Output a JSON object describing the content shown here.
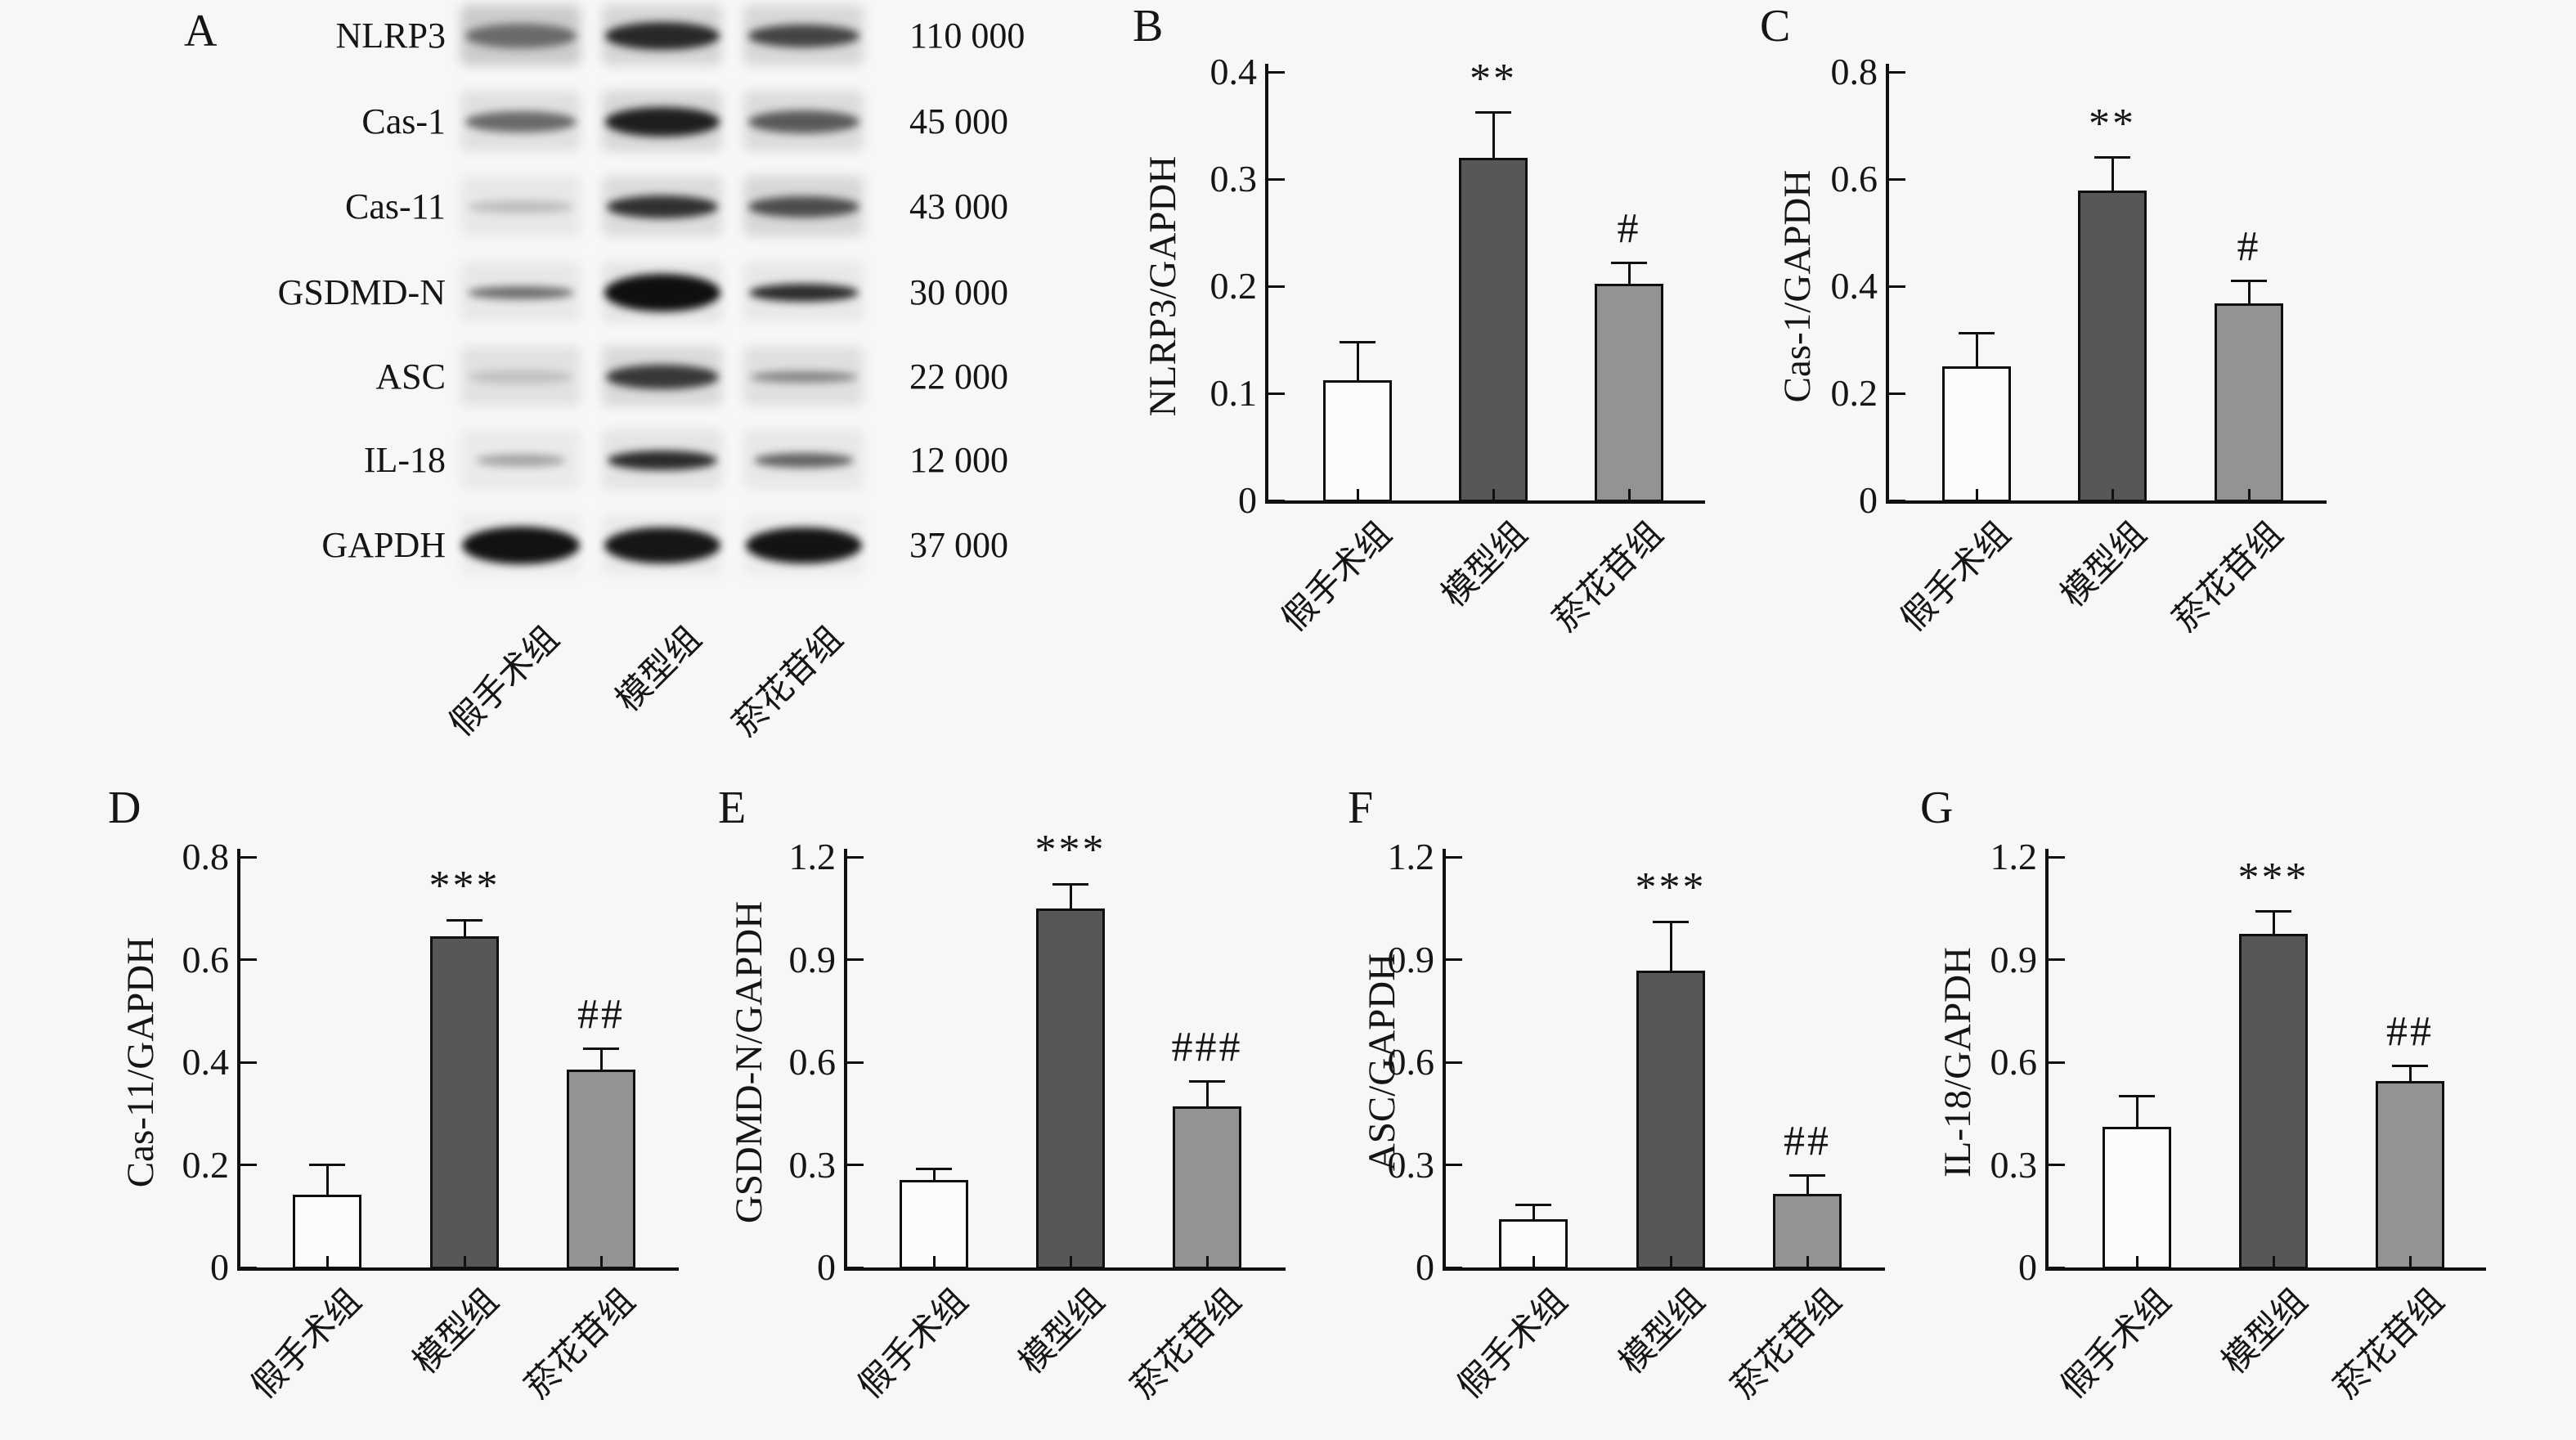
{
  "figure": {
    "background": "#f7f7f6",
    "groups": [
      "假手术组",
      "模型组",
      "菸花苷组"
    ],
    "bar_colors": [
      "#fcfcfc",
      "#575757",
      "#939393"
    ],
    "axis_color": "#101010"
  },
  "blot": {
    "letter": "A",
    "lane_labels": [
      "假手术组",
      "模型组",
      "菸花苷组"
    ],
    "rows": [
      {
        "protein": "NLRP3",
        "weight": "110 000",
        "bands": [
          {
            "i": 0.5,
            "h": 30,
            "w": 136,
            "p": 0.42
          },
          {
            "i": 0.85,
            "h": 34,
            "w": 140,
            "p": 0.32
          },
          {
            "i": 0.72,
            "h": 28,
            "w": 136,
            "p": 0.3
          }
        ]
      },
      {
        "protein": "Cas-1",
        "weight": "45 000",
        "bands": [
          {
            "i": 0.55,
            "h": 26,
            "w": 136,
            "p": 0.22
          },
          {
            "i": 0.9,
            "h": 36,
            "w": 140,
            "p": 0.3
          },
          {
            "i": 0.62,
            "h": 28,
            "w": 136,
            "p": 0.26
          }
        ]
      },
      {
        "protein": "Cas-11",
        "weight": "43 000",
        "bands": [
          {
            "i": 0.18,
            "h": 16,
            "w": 130,
            "p": 0.14
          },
          {
            "i": 0.82,
            "h": 28,
            "w": 136,
            "p": 0.26
          },
          {
            "i": 0.68,
            "h": 26,
            "w": 136,
            "p": 0.3
          }
        ]
      },
      {
        "protein": "GSDMD-N",
        "weight": "30 000",
        "bands": [
          {
            "i": 0.55,
            "h": 16,
            "w": 130,
            "p": 0.14
          },
          {
            "i": 0.98,
            "h": 46,
            "w": 142,
            "p": 0.18
          },
          {
            "i": 0.85,
            "h": 22,
            "w": 134,
            "p": 0.14
          }
        ]
      },
      {
        "protein": "ASC",
        "weight": "22 000",
        "bands": [
          {
            "i": 0.14,
            "h": 18,
            "w": 128,
            "p": 0.2
          },
          {
            "i": 0.78,
            "h": 30,
            "w": 138,
            "p": 0.28
          },
          {
            "i": 0.42,
            "h": 14,
            "w": 132,
            "p": 0.22
          }
        ]
      },
      {
        "protein": "IL-18",
        "weight": "12 000",
        "bands": [
          {
            "i": 0.3,
            "h": 16,
            "w": 110,
            "p": 0.12
          },
          {
            "i": 0.85,
            "h": 24,
            "w": 134,
            "p": 0.18
          },
          {
            "i": 0.6,
            "h": 18,
            "w": 122,
            "p": 0.14
          }
        ]
      },
      {
        "protein": "GAPDH",
        "weight": "37 000",
        "bands": [
          {
            "i": 0.97,
            "h": 46,
            "w": 144,
            "p": 0.1
          },
          {
            "i": 0.95,
            "h": 44,
            "w": 142,
            "p": 0.12
          },
          {
            "i": 0.96,
            "h": 44,
            "w": 142,
            "p": 0.1
          }
        ]
      }
    ]
  },
  "chart_data": [
    {
      "type": "bar",
      "letter": "B",
      "ylabel": "NLRP3/GAPDH",
      "categories": [
        "假手术组",
        "模型组",
        "菸花苷组"
      ],
      "values": [
        0.112,
        0.32,
        0.202
      ],
      "errors": [
        0.036,
        0.042,
        0.02
      ],
      "annotations": [
        "",
        "**",
        "#"
      ],
      "ylim": [
        0,
        0.4
      ],
      "yticks": [
        0,
        0.1,
        0.2,
        0.3,
        0.4
      ],
      "ytick_labels": [
        "0",
        "0.1",
        "0.2",
        "0.3",
        "0.4"
      ]
    },
    {
      "type": "bar",
      "letter": "C",
      "ylabel": "Cas-1/GAPDH",
      "categories": [
        "假手术组",
        "模型组",
        "菸花苷组"
      ],
      "values": [
        0.25,
        0.578,
        0.368
      ],
      "errors": [
        0.062,
        0.062,
        0.042
      ],
      "annotations": [
        "",
        "**",
        "#"
      ],
      "ylim": [
        0,
        0.8
      ],
      "yticks": [
        0,
        0.2,
        0.4,
        0.6,
        0.8
      ],
      "ytick_labels": [
        "0",
        "0.2",
        "0.4",
        "0.6",
        "0.8"
      ]
    },
    {
      "type": "bar",
      "letter": "D",
      "ylabel": "Cas-11/GAPDH",
      "categories": [
        "假手术组",
        "模型组",
        "菸花苷组"
      ],
      "values": [
        0.142,
        0.645,
        0.385
      ],
      "errors": [
        0.058,
        0.032,
        0.042
      ],
      "annotations": [
        "",
        "***",
        "##"
      ],
      "ylim": [
        0,
        0.8
      ],
      "yticks": [
        0,
        0.2,
        0.4,
        0.6,
        0.8
      ],
      "ytick_labels": [
        "0",
        "0.2",
        "0.4",
        "0.6",
        "0.8"
      ]
    },
    {
      "type": "bar",
      "letter": "E",
      "ylabel": "GSDMD-N/GAPDH",
      "categories": [
        "假手术组",
        "模型组",
        "菸花苷组"
      ],
      "values": [
        0.255,
        1.05,
        0.47
      ],
      "errors": [
        0.032,
        0.07,
        0.075
      ],
      "annotations": [
        "",
        "***",
        "###"
      ],
      "ylim": [
        0,
        1.2
      ],
      "yticks": [
        0,
        0.3,
        0.6,
        0.9,
        1.2
      ],
      "ytick_labels": [
        "0",
        "0.3",
        "0.6",
        "0.9",
        "1.2"
      ]
    },
    {
      "type": "bar",
      "letter": "F",
      "ylabel": "ASC/GAPDH",
      "categories": [
        "假手术组",
        "模型组",
        "菸花苷组"
      ],
      "values": [
        0.14,
        0.868,
        0.215
      ],
      "errors": [
        0.042,
        0.142,
        0.055
      ],
      "annotations": [
        "",
        "***",
        "##"
      ],
      "ylim": [
        0,
        1.2
      ],
      "yticks": [
        0,
        0.3,
        0.6,
        0.9,
        1.2
      ],
      "ytick_labels": [
        "0",
        "0.3",
        "0.6",
        "0.9",
        "1.2"
      ]
    },
    {
      "type": "bar",
      "letter": "G",
      "ylabel": "IL-18/GAPDH",
      "categories": [
        "假手术组",
        "模型组",
        "菸花苷组"
      ],
      "values": [
        0.41,
        0.975,
        0.545
      ],
      "errors": [
        0.09,
        0.065,
        0.045
      ],
      "annotations": [
        "",
        "***",
        "##"
      ],
      "ylim": [
        0,
        1.2
      ],
      "yticks": [
        0,
        0.3,
        0.6,
        0.9,
        1.2
      ],
      "ytick_labels": [
        "0",
        "0.3",
        "0.6",
        "0.9",
        "1.2"
      ]
    }
  ]
}
